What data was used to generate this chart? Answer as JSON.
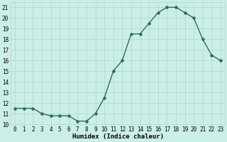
{
  "x": [
    0,
    1,
    2,
    3,
    4,
    5,
    6,
    7,
    8,
    9,
    10,
    11,
    12,
    13,
    14,
    15,
    16,
    17,
    18,
    19,
    20,
    21,
    22,
    23
  ],
  "y": [
    11.5,
    11.5,
    11.5,
    11.0,
    10.8,
    10.8,
    10.8,
    10.3,
    10.3,
    11.0,
    12.5,
    15.0,
    16.0,
    18.5,
    18.5,
    19.5,
    20.5,
    21.0,
    21.0,
    20.5,
    20.0,
    18.0,
    16.5,
    16.0
  ],
  "line_color": "#2e6b5e",
  "marker": "o",
  "markersize": 2.2,
  "linewidth": 1.0,
  "bg_color": "#cceee8",
  "grid_color": "#aad8d0",
  "xlabel": "Humidex (Indice chaleur)",
  "xlim": [
    -0.5,
    23.5
  ],
  "ylim": [
    10,
    21.5
  ],
  "ytick_values": [
    10,
    11,
    12,
    13,
    14,
    15,
    16,
    17,
    18,
    19,
    20,
    21
  ],
  "tick_fontsize": 5.5,
  "label_fontsize": 6.5
}
